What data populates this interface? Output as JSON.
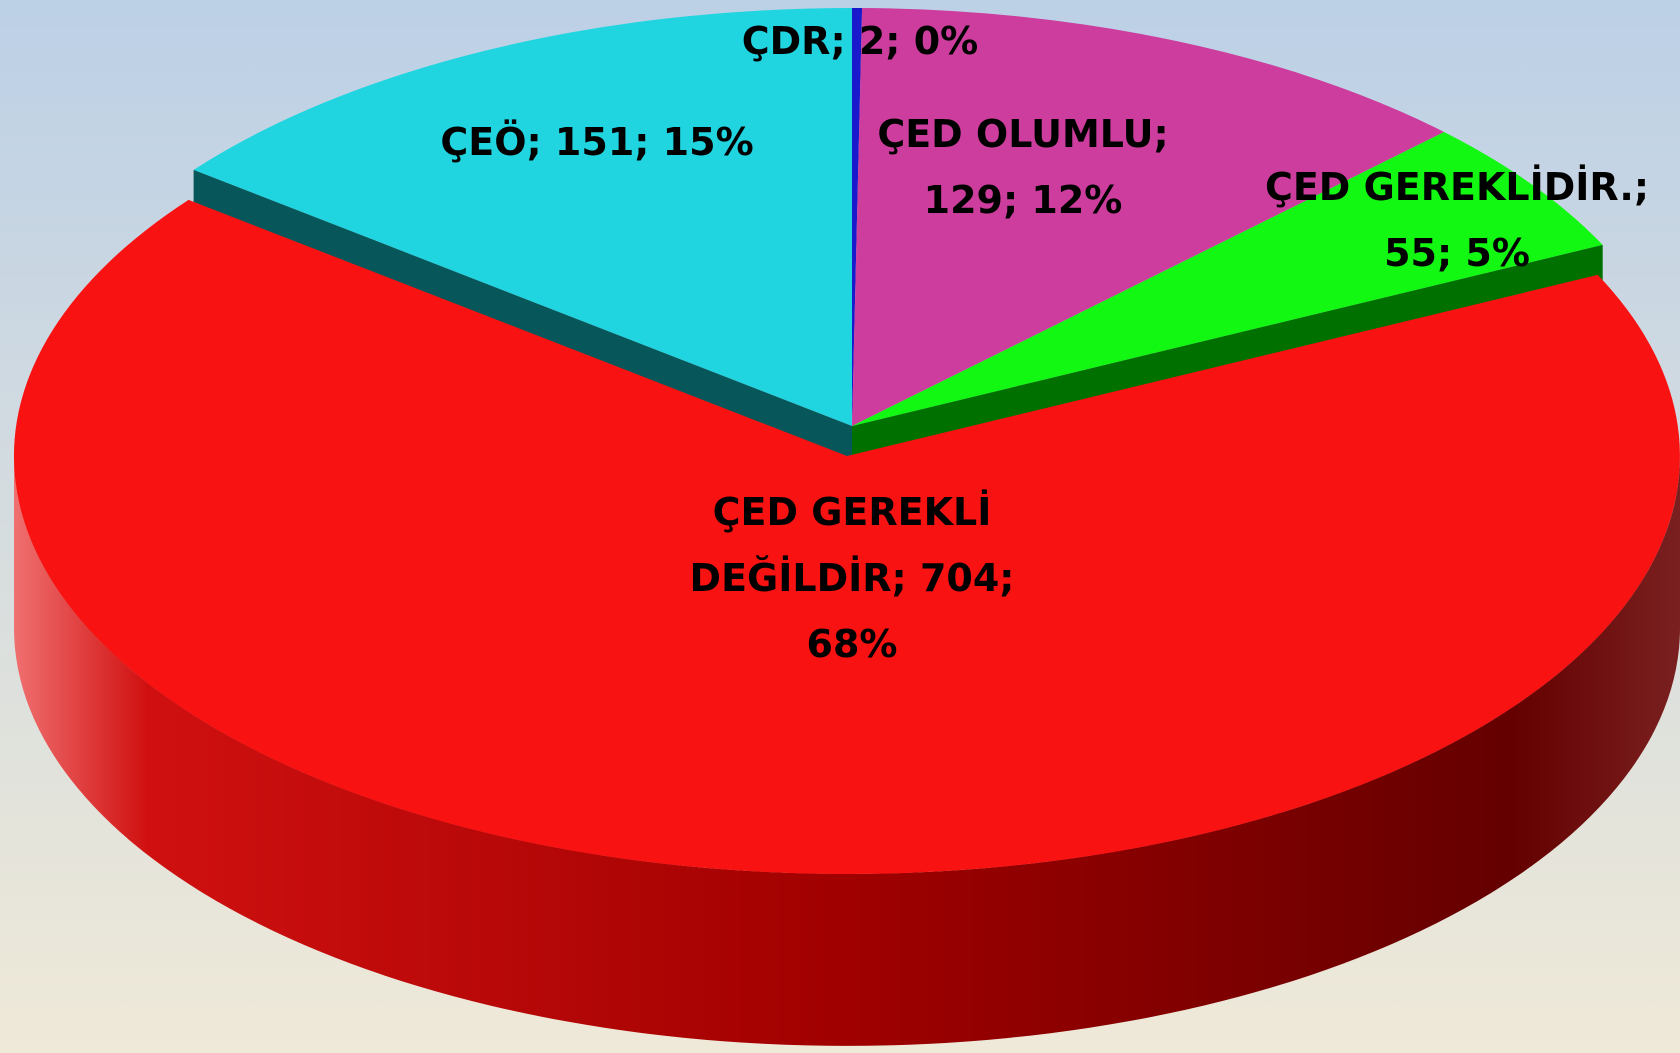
{
  "chart_data": {
    "type": "pie3d",
    "categories": [
      "ÇDR",
      "ÇED OLUMLU",
      "ÇED GEREKLİDİR.",
      "ÇED GEREKLİ DEĞİLDİR",
      "ÇEÖ"
    ],
    "values": [
      2,
      129,
      55,
      704,
      151
    ],
    "value_labels": [
      "ÇDR; 2; 0%",
      "ÇED OLUMLU; 129; 12%",
      "ÇED GEREKLİDİR.; 55; 5%",
      "ÇED GEREKLİ DEĞİLDİR; 704; 68%",
      "ÇEÖ; 151; 15%"
    ],
    "colors": [
      "#1a1acc",
      "#cc3d9e",
      "#12f812",
      "#f81212",
      "#21d5e0"
    ],
    "exploded": [
      3
    ]
  }
}
